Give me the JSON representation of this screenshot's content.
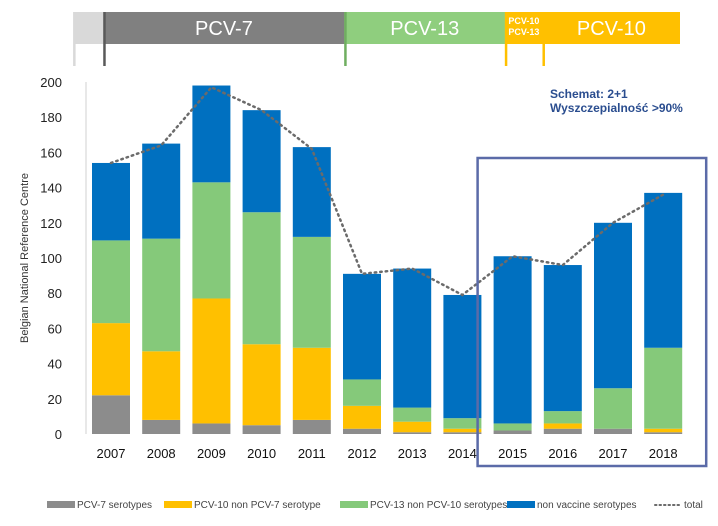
{
  "chart_data": {
    "type": "bar",
    "stacked": true,
    "categories": [
      "2007",
      "2008",
      "2009",
      "2010",
      "2011",
      "2012",
      "2013",
      "2014",
      "2015",
      "2016",
      "2017",
      "2018"
    ],
    "series": [
      {
        "name": "PCV-7 serotypes",
        "color": "#8c8c8c",
        "values": [
          22,
          8,
          6,
          5,
          8,
          3,
          1,
          1,
          2,
          3,
          3,
          1
        ]
      },
      {
        "name": "PCV-10 non PCV-7 serotype",
        "color": "#ffc000",
        "values": [
          41,
          39,
          71,
          46,
          41,
          13,
          6,
          2,
          0,
          3,
          0,
          2
        ]
      },
      {
        "name": "PCV-13 non PCV-10 serotypes",
        "color": "#85c97a",
        "values": [
          47,
          64,
          66,
          75,
          63,
          15,
          8,
          6,
          4,
          7,
          23,
          46
        ]
      },
      {
        "name": "non vaccine serotypes",
        "color": "#0070c0",
        "values": [
          44,
          54,
          55,
          58,
          51,
          60,
          79,
          70,
          95,
          83,
          94,
          88
        ]
      }
    ],
    "total": {
      "name": "total",
      "values": [
        154,
        164,
        197,
        184,
        162,
        91,
        94,
        79,
        101,
        96,
        120,
        136
      ]
    },
    "ylim": [
      0,
      200
    ],
    "yticks": [
      0,
      20,
      40,
      60,
      80,
      100,
      120,
      140,
      160,
      180,
      200
    ],
    "ylabel": "Belgian National Reference Centre",
    "grid": false,
    "legend_position": "bottom",
    "vaccine_periods": [
      {
        "label": "",
        "color": "#d9d9d9",
        "border": "#d9d9d9",
        "start": 2006.25,
        "end": 2006.85
      },
      {
        "label": "PCV-7",
        "color": "#808080",
        "border": "#595959",
        "start": 2006.85,
        "end": 2011.65
      },
      {
        "label": "PCV-13",
        "color": "#8fce7e",
        "border": "#6fae60",
        "start": 2011.65,
        "end": 2014.85
      },
      {
        "label": "PCV-10 PCV-13",
        "color": "#ffc000",
        "border": "#ffc000",
        "start": 2014.85,
        "end": 2015.6,
        "small": true
      },
      {
        "label": "PCV-10",
        "color": "#ffc000",
        "border": "#ffc000",
        "start": 2015.6,
        "end": 2019.0
      }
    ],
    "annotations": [
      "Schemat: 2+1",
      "Wyszczepialność >90%"
    ],
    "highlight_box": {
      "from": "2015",
      "to": "2018",
      "color": "#5b6ba8"
    }
  }
}
